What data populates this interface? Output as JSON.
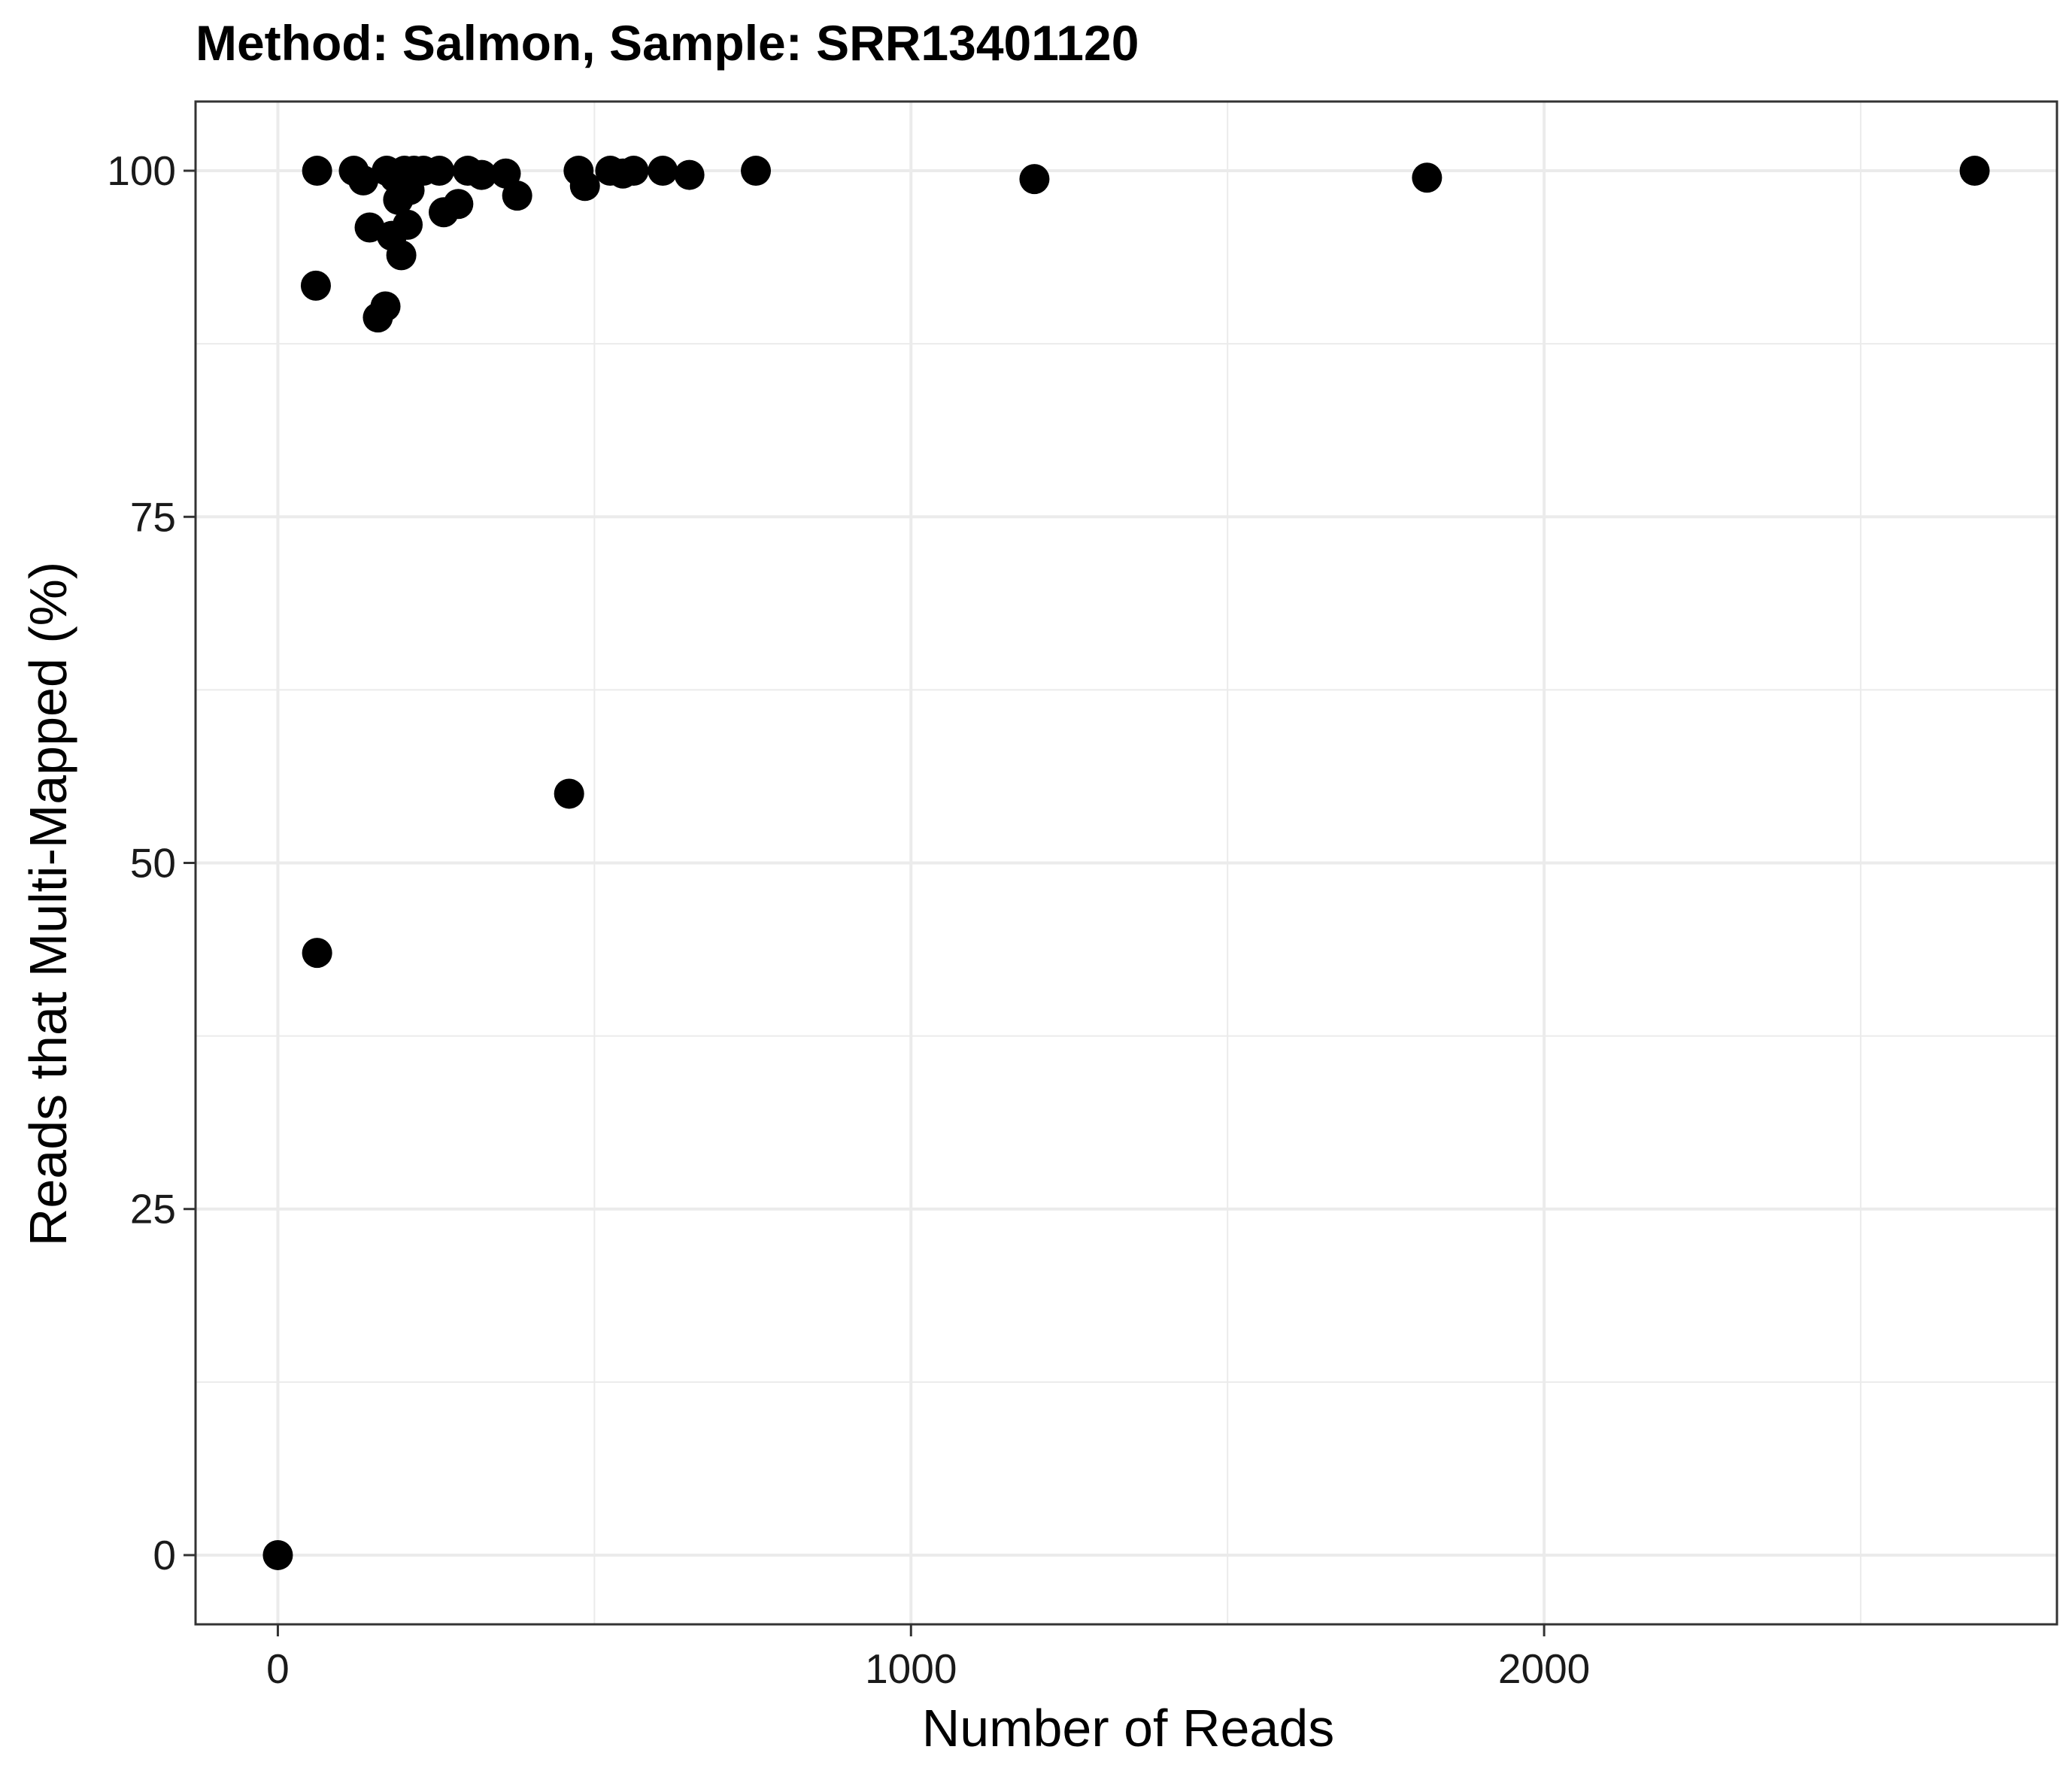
{
  "chart_data": {
    "type": "scatter",
    "title": "Method: Salmon, Sample: SRR13401120",
    "xlabel": "Number of Reads",
    "ylabel": "Reads that Multi-Mapped (%)",
    "xlim": [
      -130,
      2810
    ],
    "ylim": [
      -5,
      105
    ],
    "x_ticks": [
      0,
      1000,
      2000
    ],
    "x_tick_labels": [
      "0",
      "1000",
      "2000"
    ],
    "x_minor_ticks": [
      500,
      1500,
      2500
    ],
    "y_ticks": [
      0,
      25,
      50,
      75,
      100
    ],
    "y_tick_labels": [
      "0",
      "25",
      "50",
      "75",
      "100"
    ],
    "y_minor_ticks": [
      12.5,
      37.5,
      62.5,
      87.5
    ],
    "grid": true,
    "legend": "none",
    "point_color": "#000000",
    "panel_border_color": "#333333",
    "grid_color": "#ebebeb",
    "series": [
      {
        "points": [
          {
            "x": 0,
            "y": 0
          },
          {
            "x": 62,
            "y": 43.5
          },
          {
            "x": 60,
            "y": 91.7
          },
          {
            "x": 62,
            "y": 100
          },
          {
            "x": 120,
            "y": 100
          },
          {
            "x": 135,
            "y": 99.3
          },
          {
            "x": 145,
            "y": 95.9
          },
          {
            "x": 158,
            "y": 89.4
          },
          {
            "x": 170,
            "y": 90.2
          },
          {
            "x": 172,
            "y": 100
          },
          {
            "x": 180,
            "y": 95.3
          },
          {
            "x": 185,
            "y": 99.5
          },
          {
            "x": 190,
            "y": 97.9
          },
          {
            "x": 195,
            "y": 93.9
          },
          {
            "x": 200,
            "y": 100
          },
          {
            "x": 205,
            "y": 96.1
          },
          {
            "x": 208,
            "y": 98.6
          },
          {
            "x": 215,
            "y": 100
          },
          {
            "x": 230,
            "y": 100
          },
          {
            "x": 255,
            "y": 100
          },
          {
            "x": 262,
            "y": 97.0
          },
          {
            "x": 285,
            "y": 97.6
          },
          {
            "x": 300,
            "y": 100
          },
          {
            "x": 322,
            "y": 99.7
          },
          {
            "x": 360,
            "y": 99.8
          },
          {
            "x": 378,
            "y": 98.2
          },
          {
            "x": 460,
            "y": 55.0
          },
          {
            "x": 475,
            "y": 100
          },
          {
            "x": 485,
            "y": 98.9
          },
          {
            "x": 525,
            "y": 100
          },
          {
            "x": 545,
            "y": 99.8
          },
          {
            "x": 562,
            "y": 100
          },
          {
            "x": 608,
            "y": 100
          },
          {
            "x": 650,
            "y": 99.7
          },
          {
            "x": 755,
            "y": 100
          },
          {
            "x": 1195,
            "y": 99.4
          },
          {
            "x": 1815,
            "y": 99.5
          },
          {
            "x": 2680,
            "y": 100
          }
        ]
      }
    ]
  }
}
